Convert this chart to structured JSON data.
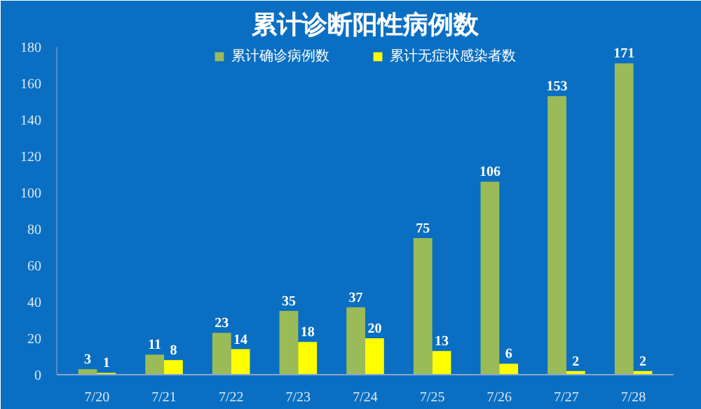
{
  "chart_data": {
    "type": "bar",
    "title": "累计诊断阳性病例数",
    "categories": [
      "7/20",
      "7/21",
      "7/22",
      "7/23",
      "7/24",
      "7/25",
      "7/26",
      "7/27",
      "7/28"
    ],
    "series": [
      {
        "name": "累计确诊病例数",
        "color": "#9bbb59",
        "values": [
          3,
          11,
          23,
          35,
          37,
          75,
          106,
          153,
          171
        ]
      },
      {
        "name": "累计无症状感染者数",
        "color": "#ffff00",
        "values": [
          1,
          8,
          14,
          18,
          20,
          13,
          6,
          2,
          2
        ]
      }
    ],
    "ylim": [
      0,
      180
    ],
    "yticks": [
      0,
      20,
      40,
      60,
      80,
      100,
      120,
      140,
      160,
      180
    ],
    "grid": false,
    "legend": "top",
    "data_labels": true
  }
}
